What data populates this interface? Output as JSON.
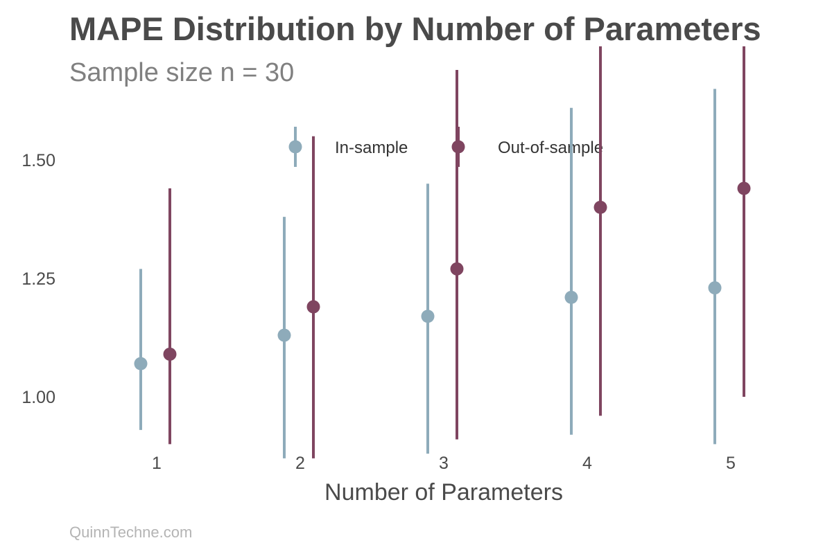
{
  "chart_data": {
    "type": "scatter",
    "title": "MAPE Distribution by Number of Parameters",
    "subtitle": "Sample size n = 30",
    "xlabel": "Number of Parameters",
    "ylabel": "",
    "categories": [
      "1",
      "2",
      "3",
      "4",
      "5"
    ],
    "yticks": [
      1.0,
      1.25,
      1.5
    ],
    "ytick_labels": [
      "1.00",
      "1.25",
      "1.50"
    ],
    "ylim": [
      0.8,
      1.75
    ],
    "grid": false,
    "legend_position": "top-center",
    "series": [
      {
        "name": "In-sample",
        "color": "#8eabba",
        "values": [
          1.07,
          1.13,
          1.17,
          1.21,
          1.23
        ],
        "lower": [
          0.93,
          0.87,
          0.88,
          0.92,
          0.9
        ],
        "upper": [
          1.27,
          1.38,
          1.45,
          1.61,
          1.65
        ]
      },
      {
        "name": "Out-of-sample",
        "color": "#7f4560",
        "values": [
          1.09,
          1.19,
          1.27,
          1.4,
          1.44
        ],
        "lower": [
          0.9,
          0.87,
          0.91,
          0.96,
          1.0
        ],
        "upper": [
          1.44,
          1.55,
          1.69,
          1.74,
          1.74
        ]
      }
    ]
  },
  "footer": "QuinnTechne.com"
}
